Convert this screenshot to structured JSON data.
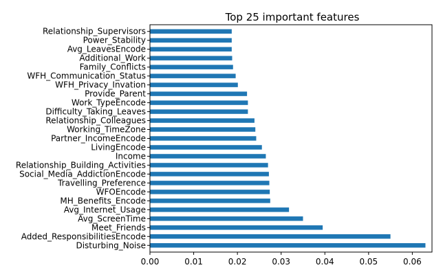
{
  "chart_data": {
    "type": "bar",
    "orientation": "horizontal",
    "title": "Top 25 important features",
    "xlabel": "",
    "ylabel": "",
    "categories": [
      "Disturbing_Noise",
      "Added_ResponsibilitiesEncode",
      "Meet_Friends",
      "Avg_ScreenTime",
      "Avg_Internet_Usage",
      "MH_Benefits_Encode",
      "WFOEncode",
      "Travelling_Preference",
      "Social_Media_AddictionEncode",
      "Relationship_Building_Activities",
      "Income",
      "LivingEncode",
      "Partner_IncomeEncode",
      "Working_TimeZone",
      "Relationship_Colleagues",
      "Difficulty_Taking_Leaves",
      "Work_TypeEncode",
      "Provide_Parent",
      "WFH_Privacy_Invation",
      "WFH_Communication_Status",
      "Family_Conflicts",
      "Additional_Work",
      "Avg_LeavesEncode",
      "Power_Stability",
      "Relationship_Supervisors"
    ],
    "values": [
      0.063,
      0.055,
      0.0395,
      0.035,
      0.0318,
      0.0275,
      0.0274,
      0.0273,
      0.0272,
      0.027,
      0.0265,
      0.0256,
      0.0243,
      0.0241,
      0.0239,
      0.0224,
      0.0224,
      0.0222,
      0.0201,
      0.0196,
      0.019,
      0.0188,
      0.0187,
      0.0187,
      0.0187
    ],
    "xlim": [
      0,
      0.0645
    ],
    "xticks": [
      "0.00",
      "0.01",
      "0.02",
      "0.03",
      "0.04",
      "0.05",
      "0.06"
    ],
    "bar_color": "#1f77b4",
    "grid": false,
    "legend": "none"
  }
}
